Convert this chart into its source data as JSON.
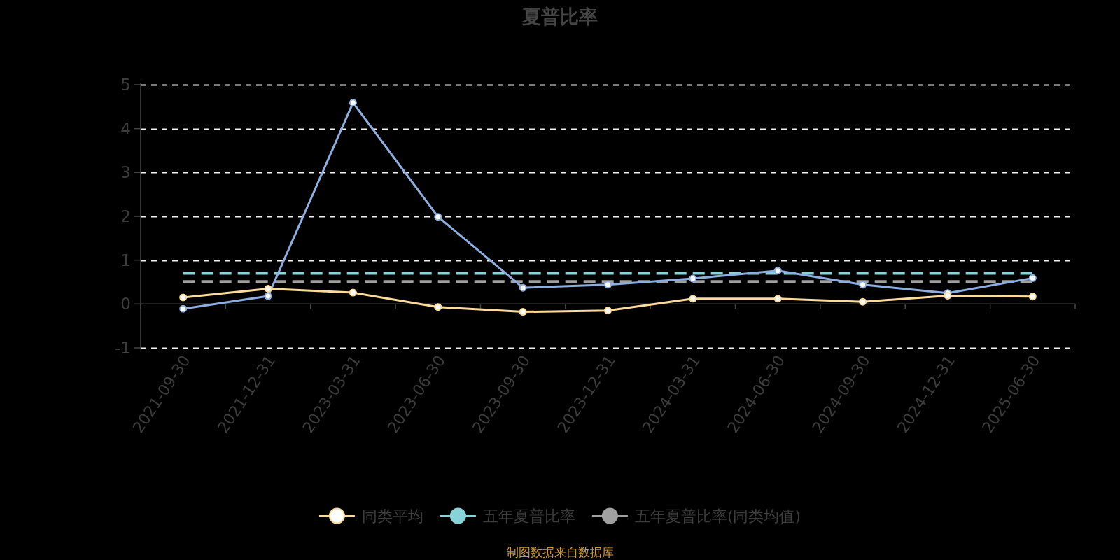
{
  "chart_data": {
    "type": "line",
    "title": "夏普比率",
    "categories": [
      "2021-09-30",
      "2021-12-31",
      "2023-03-31",
      "2023-06-30",
      "2023-09-30",
      "2023-12-31",
      "2024-03-31",
      "2024-06-30",
      "2024-09-30",
      "2024-12-31",
      "2025-06-30"
    ],
    "series": [
      {
        "color": "#8daee0",
        "marker": "circle",
        "values": [
          -0.11,
          0.18,
          4.59,
          1.99,
          0.37,
          0.44,
          0.58,
          0.76,
          0.44,
          0.25,
          0.59
        ]
      },
      {
        "name": "同类平均",
        "color": "#fedb9a",
        "marker": "circle",
        "values": [
          0.15,
          0.35,
          0.26,
          -0.07,
          -0.18,
          -0.15,
          0.12,
          0.12,
          0.05,
          0.19,
          0.17
        ]
      },
      {
        "name": "五年夏普比率",
        "color": "#86d4d8",
        "marker": "none",
        "line_style": "dashed",
        "values": [
          0.7,
          0.7,
          0.7,
          0.7,
          0.7,
          0.7,
          0.7,
          0.7,
          0.7,
          0.7,
          0.7
        ]
      },
      {
        "name": "五年夏普比率(同类均值)",
        "color": "#a0a0a0",
        "marker": "none",
        "line_style": "dashed",
        "values": [
          0.51,
          0.51,
          0.51,
          0.51,
          0.51,
          0.51,
          0.51,
          0.51,
          0.51,
          0.51,
          0.51
        ]
      }
    ],
    "ylim": [
      -1,
      5
    ],
    "yticks": [
      -1,
      0,
      1,
      2,
      3,
      4,
      5
    ],
    "grid": "y",
    "legend": "bottom",
    "annotations": [
      "制图数据来自数据库"
    ]
  }
}
